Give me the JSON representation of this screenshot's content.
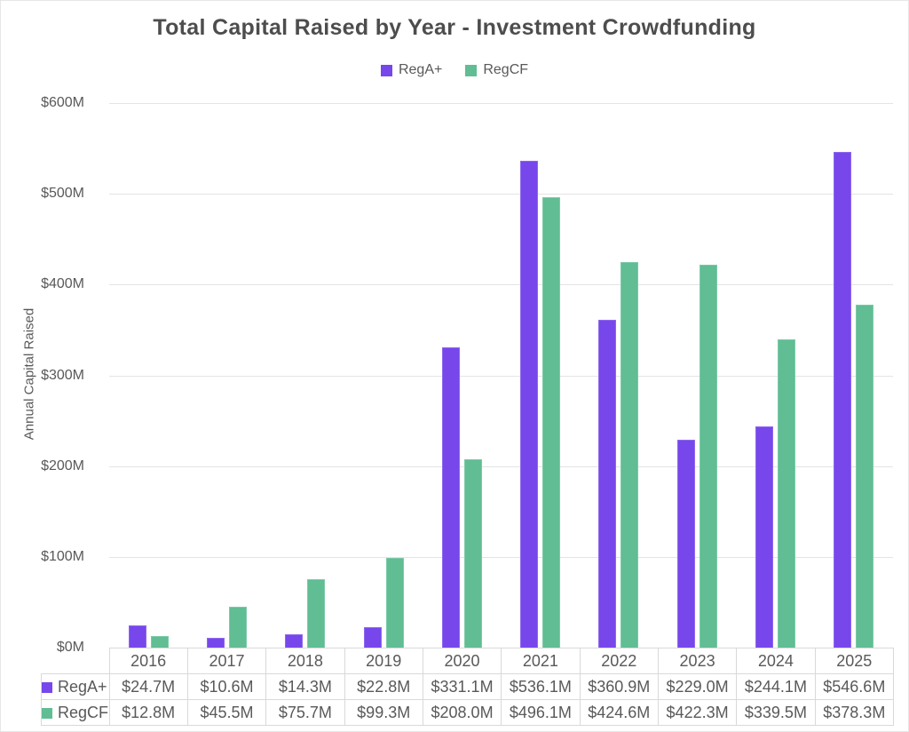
{
  "title": "Total Capital Raised by Year - Investment Crowdfunding",
  "colors": {
    "rega_plus": "#7747EB",
    "rega_plus_border": "#8f68ef",
    "regcf": "#61BD93",
    "regcf_border": "#7ccaa7",
    "gridline": "#e4e4e4",
    "text": "#595959",
    "table_border": "#d9d9d9"
  },
  "legend": {
    "items": [
      {
        "label": "RegA+",
        "color": "#7747EB"
      },
      {
        "label": "RegCF",
        "color": "#61BD93"
      }
    ]
  },
  "y_axis": {
    "label": "Annual Capital Raised",
    "ticks": [
      "$600M",
      "$500M",
      "$400M",
      "$300M",
      "$200M",
      "$100M",
      "$0M"
    ]
  },
  "chart_data": {
    "type": "bar",
    "title": "Total Capital Raised by Year - Investment Crowdfunding",
    "xlabel": "",
    "ylabel": "Annual Capital Raised",
    "ylim": [
      0,
      600
    ],
    "grid": true,
    "legend_position": "top",
    "categories": [
      "2016",
      "2017",
      "2018",
      "2019",
      "2020",
      "2021",
      "2022",
      "2023",
      "2024",
      "2025"
    ],
    "series": [
      {
        "name": "RegA+",
        "color": "#7747EB",
        "border_color": "#8f68ef",
        "values": [
          24.7,
          10.6,
          14.3,
          22.8,
          331.1,
          536.1,
          360.9,
          229.0,
          244.1,
          546.6
        ]
      },
      {
        "name": "RegCF",
        "color": "#61BD93",
        "border_color": "#7ccaa7",
        "values": [
          12.8,
          45.5,
          75.7,
          99.3,
          208.0,
          496.1,
          424.6,
          422.3,
          339.5,
          378.3
        ]
      }
    ]
  },
  "table": {
    "corner": "",
    "columns": [
      "2016",
      "2017",
      "2018",
      "2019",
      "2020",
      "2021",
      "2022",
      "2023",
      "2024",
      "2025"
    ],
    "rows": [
      {
        "label": "RegA+",
        "color": "#7747EB",
        "cells": [
          "$24.7M",
          "$10.6M",
          "$14.3M",
          "$22.8M",
          "$331.1M",
          "$536.1M",
          "$360.9M",
          "$229.0M",
          "$244.1M",
          "$546.6M"
        ]
      },
      {
        "label": "RegCF",
        "color": "#61BD93",
        "cells": [
          "$12.8M",
          "$45.5M",
          "$75.7M",
          "$99.3M",
          "$208.0M",
          "$496.1M",
          "$424.6M",
          "$422.3M",
          "$339.5M",
          "$378.3M"
        ]
      }
    ]
  }
}
